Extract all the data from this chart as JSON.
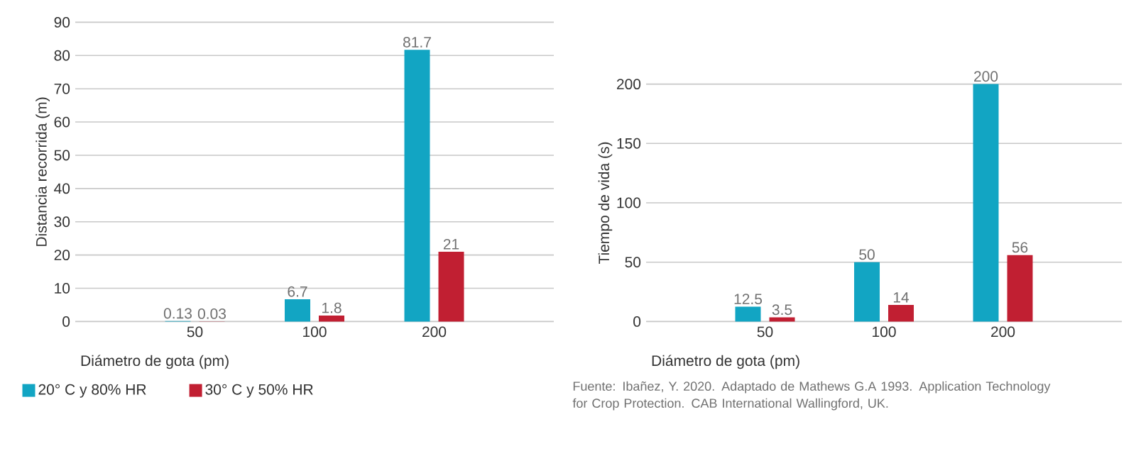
{
  "chart_data": [
    {
      "type": "bar",
      "xlabel": "Diámetro de gota (pm)",
      "ylabel": "Distancia recorrida (m)",
      "categories": [
        "50",
        "100",
        "200"
      ],
      "series": [
        {
          "name": "20° C y 80% HR",
          "color": "#12a5c3",
          "values": [
            0.13,
            6.7,
            81.7
          ]
        },
        {
          "name": "30° C y 50% HR",
          "color": "#c11f32",
          "values": [
            0.03,
            1.8,
            21
          ]
        }
      ],
      "ylim": [
        0,
        90
      ],
      "yticks": [
        0,
        10,
        20,
        30,
        40,
        50,
        60,
        70,
        80,
        90
      ],
      "grid": "y",
      "legend": "bottom",
      "data_labels": true
    },
    {
      "type": "bar",
      "xlabel": "Diámetro de gota (pm)",
      "ylabel": "Tiempo de vida (s)",
      "categories": [
        "50",
        "100",
        "200"
      ],
      "series": [
        {
          "color": "#12a5c3",
          "values": [
            12.5,
            50,
            200
          ]
        },
        {
          "color": "#c11f32",
          "values": [
            3.5,
            14,
            56
          ]
        }
      ],
      "ylim": [
        0,
        200
      ],
      "yticks": [
        0,
        50,
        100,
        150,
        200
      ],
      "grid": "y",
      "data_labels": true,
      "annotations": [
        "Fuente: Ibañez, Y. 2020. Adaptado de Mathews G.A 1993. Application Technology for Crop Protection. CAB International Wallingford, UK."
      ]
    }
  ]
}
